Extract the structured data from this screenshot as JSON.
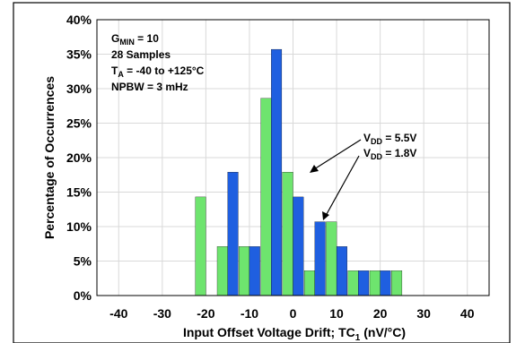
{
  "chart_data": {
    "type": "bar",
    "xlabel_main": "Input Offset Voltage Drift; TC",
    "xlabel_sub": "1",
    "xlabel_units": " (nV/°C)",
    "ylabel": "Percentage of Occurrences",
    "xlim": [
      -45,
      45
    ],
    "ylim": [
      0,
      40
    ],
    "x_ticks": [
      -40,
      -30,
      -20,
      -10,
      0,
      10,
      20,
      30,
      40
    ],
    "y_ticks": [
      "0%",
      "5%",
      "10%",
      "15%",
      "20%",
      "25%",
      "30%",
      "35%",
      "40%"
    ],
    "bin_width": 5,
    "series": [
      {
        "name": "VDD = 1.8V",
        "color": "#6ee46e",
        "x": [
          -20,
          -15,
          -10,
          -5,
          0,
          5,
          10,
          15,
          20,
          25
        ],
        "values": [
          14.3,
          7.1,
          7.1,
          28.6,
          17.9,
          3.6,
          10.7,
          3.6,
          3.6,
          3.6
        ]
      },
      {
        "name": "VDD = 5.5V",
        "color": "#1f5fe0",
        "x": [
          -15,
          -10,
          -5,
          0,
          5,
          10,
          15,
          20
        ],
        "values": [
          17.9,
          7.1,
          35.7,
          14.3,
          10.7,
          7.1,
          3.6,
          3.6
        ]
      }
    ],
    "conditions": [
      {
        "main": "G",
        "sub": "MIN",
        "rest": " = 10"
      },
      {
        "main": "28 Samples",
        "sub": "",
        "rest": ""
      },
      {
        "main": "T",
        "sub": "A",
        "rest": " = -40 to +125°C"
      },
      {
        "main": "NPBW = 3 mHz",
        "sub": "",
        "rest": ""
      }
    ],
    "legend_labels": [
      {
        "main": "V",
        "sub": "DD",
        "rest": " = 5.5V"
      },
      {
        "main": "V",
        "sub": "DD",
        "rest": " = 1.8V"
      }
    ]
  }
}
